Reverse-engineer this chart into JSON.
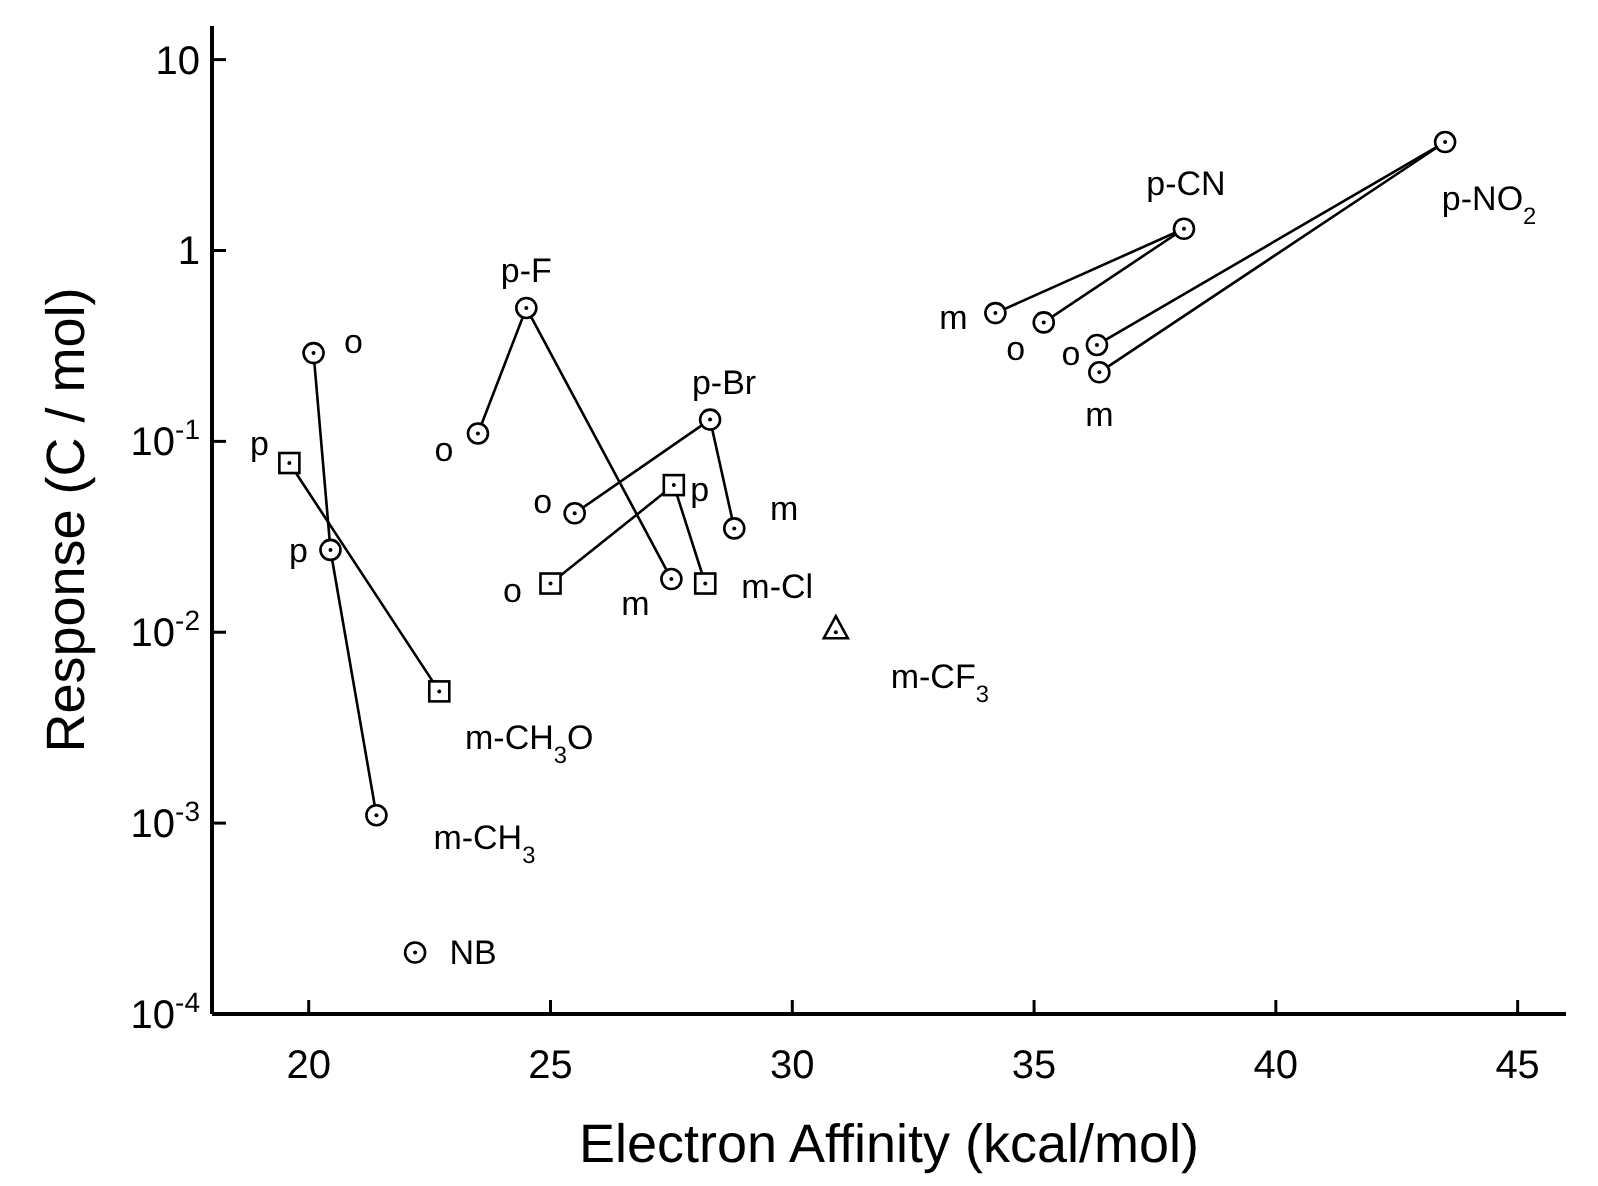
{
  "chart_data": {
    "type": "scatter",
    "xlabel": "Electron Affinity (kcal/mol)",
    "ylabel": "Response (C / mol)",
    "log": "y",
    "xlim": [
      18,
      46
    ],
    "xticks": [
      20,
      25,
      30,
      35,
      40,
      45
    ],
    "ylim": [
      0.0001,
      15
    ],
    "yticks": [
      {
        "value": 0.0001,
        "label": "10$^{-4}$"
      },
      {
        "value": 0.001,
        "label": "10$^{-3}$"
      },
      {
        "value": 0.01,
        "label": "10$^{-2}$"
      },
      {
        "value": 0.1,
        "label": "10$^{-1}$"
      },
      1,
      10
    ],
    "series": [
      {
        "type": "line",
        "marker": "none",
        "color": "#000000",
        "x": [
          20.1,
          20.45,
          21.4
        ],
        "values": [
          0.29,
          0.027,
          0.0011
        ]
      },
      {
        "type": "line",
        "marker": "none",
        "color": "#000000",
        "x": [
          19.6,
          22.7
        ],
        "values": [
          0.077,
          0.0049
        ]
      },
      {
        "type": "line",
        "marker": "none",
        "color": "#000000",
        "x": [
          23.5,
          24.5,
          27.5
        ],
        "values": [
          0.11,
          0.5,
          0.019
        ]
      },
      {
        "type": "line",
        "marker": "none",
        "color": "#000000",
        "x": [
          25.5,
          28.3,
          28.8
        ],
        "values": [
          0.042,
          0.13,
          0.035
        ]
      },
      {
        "type": "line",
        "marker": "none",
        "color": "#000000",
        "x": [
          25.0,
          27.55,
          28.2
        ],
        "values": [
          0.018,
          0.059,
          0.018
        ]
      },
      {
        "type": "line",
        "marker": "none",
        "color": "#000000",
        "x": [
          34.2,
          38.1
        ],
        "values": [
          0.47,
          1.3
        ]
      },
      {
        "type": "line",
        "marker": "none",
        "color": "#000000",
        "x": [
          35.2,
          38.1
        ],
        "values": [
          0.42,
          1.3
        ]
      },
      {
        "type": "line",
        "marker": "none",
        "color": "#000000",
        "x": [
          36.3,
          43.5
        ],
        "values": [
          0.32,
          3.7
        ]
      },
      {
        "type": "line",
        "marker": "none",
        "color": "#000000",
        "x": [
          36.35,
          43.5
        ],
        "values": [
          0.23,
          3.7
        ]
      },
      {
        "marker": "circle",
        "color": "#000000",
        "x": [
          20.1,
          20.45,
          21.4,
          22.2,
          23.5,
          24.5,
          25.5,
          28.3,
          28.8,
          27.5,
          34.2,
          35.2,
          36.3,
          36.35,
          38.1,
          43.5
        ],
        "values": [
          0.29,
          0.027,
          0.0011,
          0.00021,
          0.11,
          0.5,
          0.042,
          0.13,
          0.035,
          0.019,
          0.47,
          0.42,
          0.32,
          0.23,
          1.3,
          3.7
        ]
      },
      {
        "marker": "square",
        "color": "#000000",
        "x": [
          19.6,
          22.7,
          25.0,
          27.55,
          28.2
        ],
        "values": [
          0.077,
          0.0049,
          0.018,
          0.059,
          0.018
        ]
      },
      {
        "marker": "triangle",
        "color": "#000000",
        "x": [
          30.9
        ],
        "values": [
          0.0105
        ]
      }
    ],
    "annotations": [
      {
        "text": "o",
        "x": 20.1,
        "y": 0.29
      },
      {
        "text": "p",
        "x": 19.6,
        "y": 0.077
      },
      {
        "text": "p",
        "x": 20.45,
        "y": 0.027
      },
      {
        "text": "m-CH$_{3}$O",
        "x": 22.7,
        "y": 0.0049
      },
      {
        "text": "m-CH$_{3}$",
        "x": 21.4,
        "y": 0.0011
      },
      {
        "text": "NB",
        "x": 22.2,
        "y": 0.00021
      },
      {
        "text": "p-F",
        "x": 24.5,
        "y": 0.5
      },
      {
        "text": "o",
        "x": 23.5,
        "y": 0.11
      },
      {
        "text": "p-Br",
        "x": 28.3,
        "y": 0.13
      },
      {
        "text": "o",
        "x": 25.5,
        "y": 0.042
      },
      {
        "text": "p",
        "x": 27.55,
        "y": 0.059
      },
      {
        "text": "m",
        "x": 28.8,
        "y": 0.035
      },
      {
        "text": "o",
        "x": 25.0,
        "y": 0.018
      },
      {
        "text": "m",
        "x": 27.5,
        "y": 0.019
      },
      {
        "text": "m-Cl",
        "x": 28.2,
        "y": 0.018
      },
      {
        "text": "m-CF$_{3}$",
        "x": 30.9,
        "y": 0.0105
      },
      {
        "text": "p-CN",
        "x": 38.1,
        "y": 1.3
      },
      {
        "text": "p-NO$_{2}$",
        "x": 43.5,
        "y": 3.7
      },
      {
        "text": "m",
        "x": 34.2,
        "y": 0.47
      },
      {
        "text": "o",
        "x": 35.2,
        "y": 0.42
      },
      {
        "text": "o",
        "x": 36.3,
        "y": 0.32
      },
      {
        "text": "m",
        "x": 36.35,
        "y": 0.23
      }
    ]
  }
}
